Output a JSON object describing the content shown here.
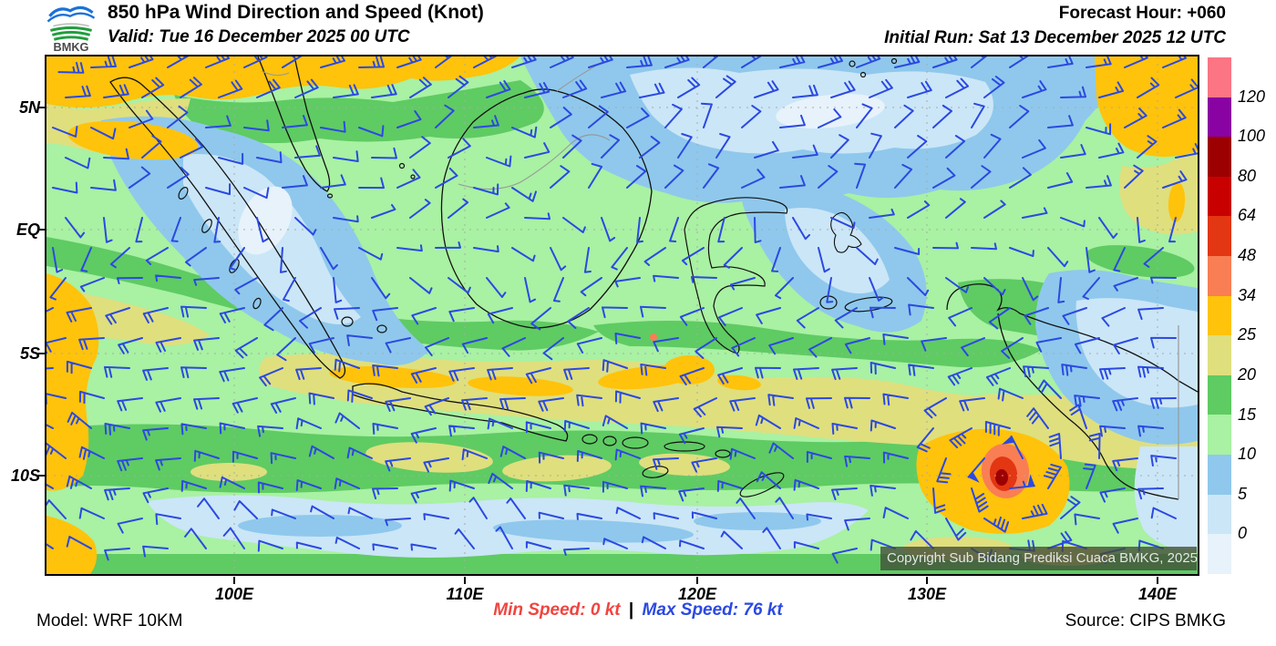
{
  "header": {
    "logo_text": "BMKG",
    "title": "850 hPa Wind Direction and Speed (Knot)",
    "valid": "Valid: Tue 16 December 2025 00 UTC",
    "forecast_hour": "Forecast Hour: +060",
    "initial_run": "Initial Run: Sat 13 December 2025 12 UTC"
  },
  "map": {
    "lat_labels": [
      "5N",
      "EQ",
      "5S",
      "10S"
    ],
    "lon_labels": [
      "100E",
      "110E",
      "120E",
      "130E",
      "140E"
    ],
    "copyright": "Copyright Sub Bidang Prediksi Cuaca BMKG, 2025"
  },
  "colorbar": {
    "labels": [
      "120",
      "100",
      "80",
      "64",
      "48",
      "34",
      "25",
      "20",
      "15",
      "10",
      "5",
      "0"
    ],
    "colors_top_to_bottom": [
      "#FB7585",
      "#8903A2",
      "#9D0000",
      "#C80000",
      "#E33613",
      "#F97E54",
      "#FFC30B",
      "#DFDF7E",
      "#5FCB63",
      "#A9F1A3",
      "#8FC8EC",
      "#CBE6F7",
      "#E7F2FB"
    ],
    "barb_color": "#2B49E1"
  },
  "footer": {
    "model": "Model: WRF 10KM",
    "min_speed": "Min Speed:  0 kt",
    "separator": "|",
    "max_speed": "Max Speed:  76 kt",
    "source": "Source: CIPS BMKG"
  },
  "chart_data": {
    "type": "heatmap",
    "title": "850 hPa Wind Direction and Speed (Knot)",
    "units": "knot",
    "speed_scale_kt": [
      0,
      5,
      10,
      15,
      20,
      25,
      34,
      48,
      64,
      80,
      100,
      120
    ],
    "min_speed_kt": 0,
    "max_speed_kt": 76,
    "lat_ticks": [
      "5N",
      "EQ",
      "5S",
      "10S"
    ],
    "lon_ticks": [
      "100E",
      "110E",
      "120E",
      "130E",
      "140E"
    ],
    "legend_position": "right"
  }
}
